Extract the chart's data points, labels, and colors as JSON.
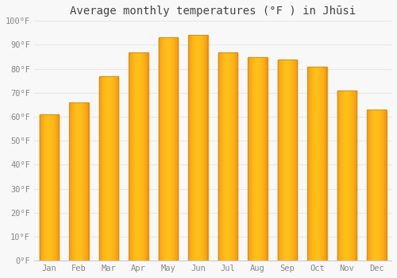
{
  "title": "Average monthly temperatures (°F ) in Jhūsi",
  "months": [
    "Jan",
    "Feb",
    "Mar",
    "Apr",
    "May",
    "Jun",
    "Jul",
    "Aug",
    "Sep",
    "Oct",
    "Nov",
    "Dec"
  ],
  "values": [
    61,
    66,
    77,
    87,
    93,
    94,
    87,
    85,
    84,
    81,
    71,
    63
  ],
  "bar_color_center": "#FFB800",
  "bar_color_edge": "#F08000",
  "bar_border_color": "#B8A060",
  "background_color": "#F8F8F8",
  "grid_color": "#E8E8E8",
  "ylim": [
    0,
    100
  ],
  "yticks": [
    0,
    10,
    20,
    30,
    40,
    50,
    60,
    70,
    80,
    90,
    100
  ],
  "ytick_labels": [
    "0°F",
    "10°F",
    "20°F",
    "30°F",
    "40°F",
    "50°F",
    "60°F",
    "70°F",
    "80°F",
    "90°F",
    "100°F"
  ],
  "title_fontsize": 10,
  "tick_fontsize": 7.5,
  "tick_color": "#888888",
  "font_family": "monospace",
  "bar_width": 0.65
}
